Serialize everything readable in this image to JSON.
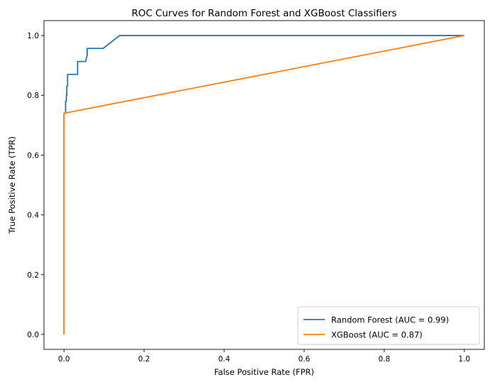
{
  "chart_data": {
    "type": "line",
    "title": "ROC Curves for Random Forest and XGBoost Classifiers",
    "xlabel": "False Positive Rate (FPR)",
    "ylabel": "True Positive Rate (TPR)",
    "xlim": [
      -0.05,
      1.05
    ],
    "ylim": [
      -0.05,
      1.05
    ],
    "xticks": [
      "0.0",
      "0.2",
      "0.4",
      "0.6",
      "0.8",
      "1.0"
    ],
    "yticks": [
      "0.0",
      "0.2",
      "0.4",
      "0.6",
      "0.8",
      "1.0"
    ],
    "grid": false,
    "legend_position": "lower-right",
    "series": [
      {
        "name": "Random Forest (AUC = 0.99)",
        "color": "#1f77b4",
        "x": [
          0.0,
          0.0,
          0.0,
          0.004,
          0.004,
          0.006,
          0.006,
          0.007,
          0.007,
          0.009,
          0.009,
          0.011,
          0.011,
          0.024,
          0.034,
          0.034,
          0.054,
          0.058,
          0.058,
          0.098,
          0.139,
          1.0
        ],
        "y": [
          0.0,
          0.74,
          0.74,
          0.74,
          0.78,
          0.78,
          0.8,
          0.8,
          0.83,
          0.83,
          0.87,
          0.87,
          0.87,
          0.87,
          0.87,
          0.913,
          0.913,
          0.935,
          0.957,
          0.957,
          1.0,
          1.0
        ]
      },
      {
        "name": "XGBoost (AUC = 0.87)",
        "color": "#ff7f0e",
        "x": [
          0.0,
          0.0,
          0.0,
          1.0
        ],
        "y": [
          0.0,
          0.0,
          0.74,
          1.0
        ]
      }
    ]
  }
}
